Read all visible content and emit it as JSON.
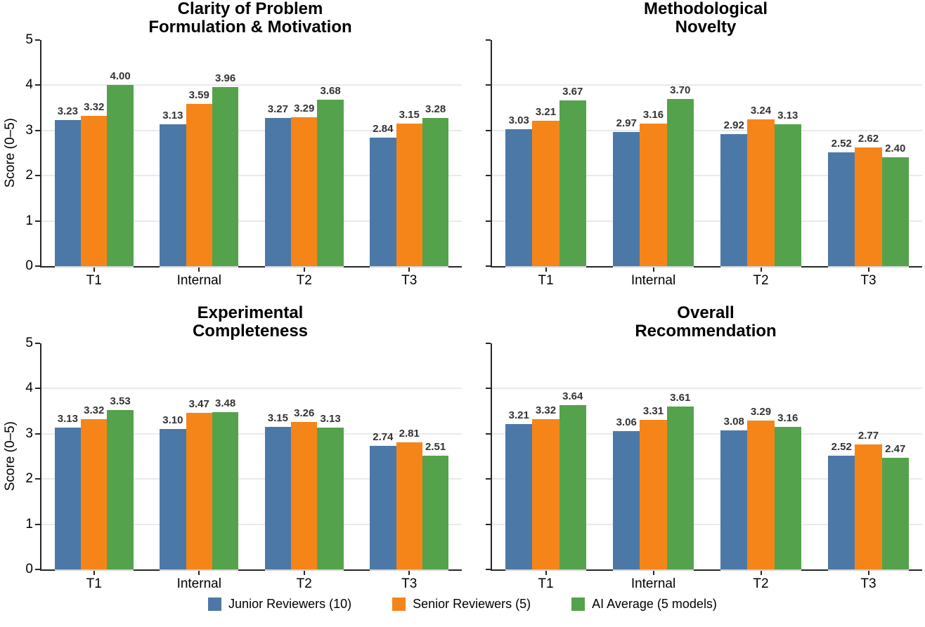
{
  "figure": {
    "ylabel": "Score (0–5)",
    "ylim": [
      0,
      5
    ],
    "yticks": [
      0,
      1,
      2,
      3,
      4,
      5
    ],
    "categories": [
      "T1",
      "Internal",
      "T2",
      "T3"
    ],
    "grid": true,
    "legend_position": "bottom",
    "colors": {
      "junior": "#4C78A8",
      "senior": "#F58518",
      "ai": "#54A24B",
      "gridline": "#e9e9e9",
      "spine": "#262626",
      "value_label": "#333333"
    }
  },
  "legend": {
    "items": [
      {
        "label": "Junior Reviewers (10)",
        "color": "#4C78A8"
      },
      {
        "label": "Senior Reviewers (5)",
        "color": "#F58518"
      },
      {
        "label": "AI Average (5 models)",
        "color": "#54A24B"
      }
    ]
  },
  "chart_data": [
    {
      "type": "bar",
      "title": "Clarity of Problem Formulation & Motivation",
      "title_lines": [
        "Clarity of Problem",
        "Formulation & Motivation"
      ],
      "ylabel": "Score (0–5)",
      "ylim": [
        0,
        5
      ],
      "show_y_axis_labels": true,
      "categories": [
        "T1",
        "Internal",
        "T2",
        "T3"
      ],
      "series": [
        {
          "name": "Junior Reviewers (10)",
          "color": "#4C78A8",
          "values": [
            3.23,
            3.13,
            3.27,
            2.84
          ]
        },
        {
          "name": "Senior Reviewers (5)",
          "color": "#F58518",
          "values": [
            3.32,
            3.59,
            3.29,
            3.15
          ]
        },
        {
          "name": "AI Average (5 models)",
          "color": "#54A24B",
          "values": [
            4.0,
            3.96,
            3.68,
            3.28
          ]
        }
      ]
    },
    {
      "type": "bar",
      "title": "Methodological Novelty",
      "title_lines": [
        "Methodological",
        "Novelty"
      ],
      "ylabel": "Score (0–5)",
      "ylim": [
        0,
        5
      ],
      "show_y_axis_labels": false,
      "categories": [
        "T1",
        "Internal",
        "T2",
        "T3"
      ],
      "series": [
        {
          "name": "Junior Reviewers (10)",
          "color": "#4C78A8",
          "values": [
            3.03,
            2.97,
            2.92,
            2.52
          ]
        },
        {
          "name": "Senior Reviewers (5)",
          "color": "#F58518",
          "values": [
            3.21,
            3.16,
            3.24,
            2.62
          ]
        },
        {
          "name": "AI Average (5 models)",
          "color": "#54A24B",
          "values": [
            3.67,
            3.7,
            3.13,
            2.4
          ]
        }
      ]
    },
    {
      "type": "bar",
      "title": "Experimental Completeness",
      "title_lines": [
        "Experimental",
        "Completeness"
      ],
      "ylabel": "Score (0–5)",
      "ylim": [
        0,
        5
      ],
      "show_y_axis_labels": true,
      "categories": [
        "T1",
        "Internal",
        "T2",
        "T3"
      ],
      "series": [
        {
          "name": "Junior Reviewers (10)",
          "color": "#4C78A8",
          "values": [
            3.13,
            3.1,
            3.15,
            2.74
          ]
        },
        {
          "name": "Senior Reviewers (5)",
          "color": "#F58518",
          "values": [
            3.32,
            3.47,
            3.26,
            2.81
          ]
        },
        {
          "name": "AI Average (5 models)",
          "color": "#54A24B",
          "values": [
            3.53,
            3.48,
            3.13,
            2.51
          ]
        }
      ]
    },
    {
      "type": "bar",
      "title": "Overall Recommendation",
      "title_lines": [
        "Overall",
        "Recommendation"
      ],
      "ylabel": "Score (0–5)",
      "ylim": [
        0,
        5
      ],
      "show_y_axis_labels": false,
      "categories": [
        "T1",
        "Internal",
        "T2",
        "T3"
      ],
      "series": [
        {
          "name": "Junior Reviewers (10)",
          "color": "#4C78A8",
          "values": [
            3.21,
            3.06,
            3.08,
            2.52
          ]
        },
        {
          "name": "Senior Reviewers (5)",
          "color": "#F58518",
          "values": [
            3.32,
            3.31,
            3.29,
            2.77
          ]
        },
        {
          "name": "AI Average (5 models)",
          "color": "#54A24B",
          "values": [
            3.64,
            3.61,
            3.16,
            2.47
          ]
        }
      ]
    }
  ]
}
